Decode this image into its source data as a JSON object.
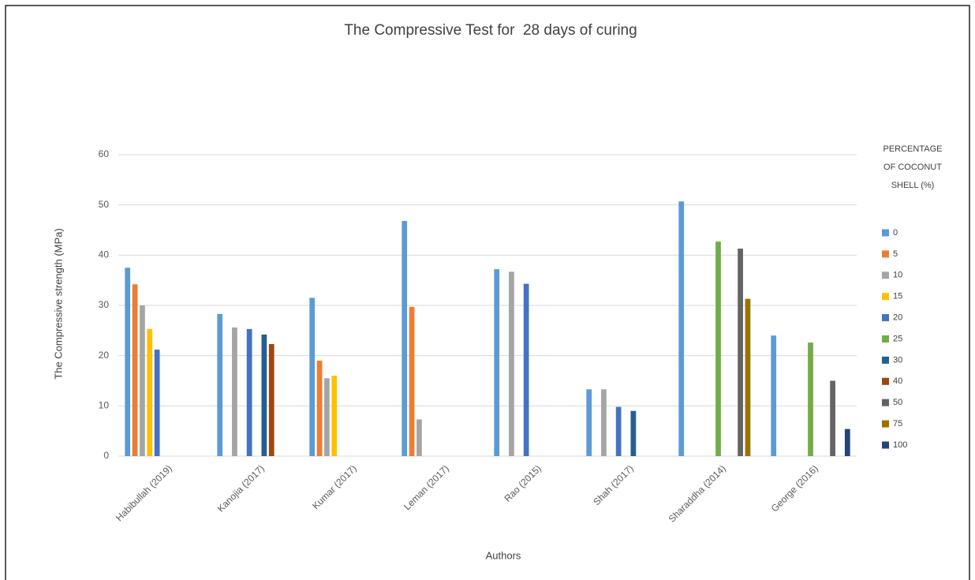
{
  "chart_data": {
    "type": "bar",
    "title": "The Compressive Test for  28 days of curing",
    "x_label": "Authors",
    "y_label": "The Compressive strength (MPa)",
    "legend_title": [
      "PERCENTAGE",
      "OF COCONUT",
      "SHELL (%)"
    ],
    "legend": "right",
    "grid": true,
    "categories": [
      "Habibullah (2019)",
      "Kanojia (2017)",
      "Kumar (2017)",
      "Leman (2017)",
      "Rao (2015)",
      "Shah (2017)",
      "Sharaddha (2014)",
      "George (2016)"
    ],
    "ylim": [
      0,
      60
    ],
    "yticks": [
      0,
      10,
      20,
      30,
      40,
      50,
      60
    ],
    "series": [
      {
        "name": "0",
        "color": "#5b9bd5",
        "values": [
          37.5,
          28.3,
          31.5,
          46.8,
          37.2,
          13.3,
          50.7,
          24
        ]
      },
      {
        "name": "5",
        "color": "#ed7d31",
        "values": [
          34.2,
          null,
          19,
          29.7,
          null,
          null,
          null,
          null
        ]
      },
      {
        "name": "10",
        "color": "#a5a5a5",
        "values": [
          30,
          25.6,
          15.5,
          7.3,
          36.7,
          13.3,
          null,
          null
        ]
      },
      {
        "name": "15",
        "color": "#ffc000",
        "values": [
          25.3,
          null,
          16,
          null,
          null,
          null,
          null,
          null
        ]
      },
      {
        "name": "20",
        "color": "#4472c4",
        "values": [
          21.2,
          25.3,
          null,
          null,
          34.3,
          9.8,
          null,
          null
        ]
      },
      {
        "name": "25",
        "color": "#70ad47",
        "values": [
          null,
          null,
          null,
          null,
          null,
          null,
          42.7,
          22.6
        ]
      },
      {
        "name": "30",
        "color": "#255e91",
        "values": [
          null,
          24.2,
          null,
          null,
          null,
          9,
          null,
          null
        ]
      },
      {
        "name": "40",
        "color": "#9e480e",
        "values": [
          null,
          22.3,
          null,
          null,
          null,
          null,
          null,
          null
        ]
      },
      {
        "name": "50",
        "color": "#636363",
        "values": [
          null,
          null,
          null,
          null,
          null,
          null,
          41.3,
          15
        ]
      },
      {
        "name": "75",
        "color": "#997300",
        "values": [
          null,
          null,
          null,
          null,
          null,
          null,
          31.3,
          null
        ]
      },
      {
        "name": "100",
        "color": "#264478",
        "values": [
          null,
          null,
          null,
          null,
          null,
          null,
          null,
          5.4
        ]
      }
    ]
  }
}
